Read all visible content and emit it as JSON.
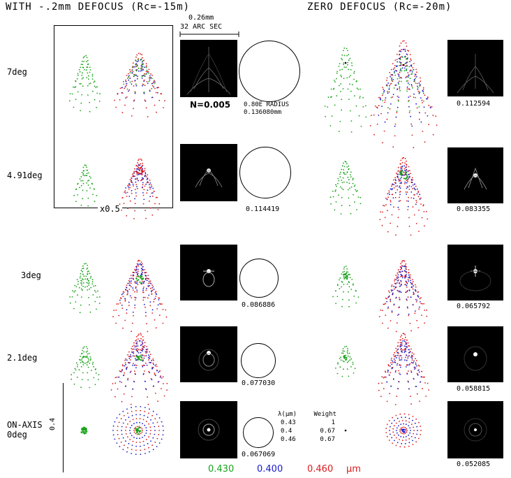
{
  "titles": {
    "left": "WITH -.2mm DEFOCUS (Rc=-15m)",
    "right": "ZERO DEFOCUS (Rc=-20m)"
  },
  "scale": {
    "mm": "0.26mm",
    "arcsec": "32 ARC SEC",
    "box_factor": "x0.5",
    "vertical": "0.4"
  },
  "note": {
    "n": "N=0.005",
    "radius_label": "0.80E RADIUS",
    "radius_value": "0.136080mm"
  },
  "rows": [
    {
      "label": "7deg",
      "left_value": "",
      "right_value": "0.112594"
    },
    {
      "label": "4.91deg",
      "left_value": "0.114419",
      "right_value": "0.083355"
    },
    {
      "label": "3deg",
      "left_value": "0.086886",
      "right_value": "0.065792"
    },
    {
      "label": "2.1deg",
      "left_value": "0.077030",
      "right_value": "0.058815"
    },
    {
      "label_line1": "ON-AXIS",
      "label_line2": "0deg",
      "left_value": "0.067069",
      "right_value": "0.052085"
    }
  ],
  "weights_table": {
    "headers": [
      "λ(μm)",
      "Weight"
    ],
    "rows": [
      [
        "0.43",
        "1"
      ],
      [
        "0.4",
        "0.67"
      ],
      [
        "0.46",
        "0.67"
      ]
    ]
  },
  "legend": {
    "items": [
      {
        "value": "0.430",
        "color": "#1aa31a"
      },
      {
        "value": "0.400",
        "color": "#1a1acc"
      },
      {
        "value": "0.460",
        "color": "#dd1a1a"
      }
    ],
    "unit": "μm"
  },
  "colors": {
    "green": "#1aa31a",
    "blue": "#1a1acc",
    "red": "#dd1a1a"
  }
}
